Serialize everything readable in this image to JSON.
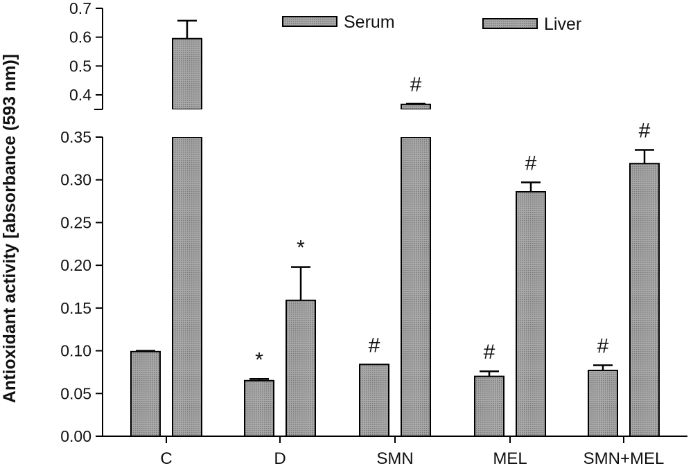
{
  "chart_data": {
    "type": "bar",
    "title": "",
    "xlabel": "",
    "ylabel": "Antioxidant activity [absorbance (593 nm)]",
    "categories": [
      "C",
      "D",
      "SMN",
      "MEL",
      "SMN+MEL"
    ],
    "series": [
      {
        "name": "Serum",
        "values": [
          0.099,
          0.065,
          0.084,
          0.07,
          0.077
        ],
        "errors": [
          0.001,
          0.002,
          0.0,
          0.006,
          0.006
        ],
        "annotations": [
          "",
          "*",
          "#",
          "#",
          "#"
        ]
      },
      {
        "name": "Liver",
        "values": [
          0.595,
          0.159,
          0.367,
          0.286,
          0.319
        ],
        "errors": [
          0.062,
          0.039,
          0.002,
          0.011,
          0.016
        ],
        "annotations": [
          "",
          "*",
          "#",
          "#",
          "#"
        ]
      }
    ],
    "y_axis_break": {
      "lower_range": [
        0,
        0.35
      ],
      "lower_ticks": [
        "0.00",
        "0.05",
        "0.10",
        "0.15",
        "0.20",
        "0.25",
        "0.30",
        "0.35"
      ],
      "upper_range": [
        0.35,
        0.7
      ],
      "upper_ticks": [
        "0.4",
        "0.5",
        "0.6",
        "0.7"
      ]
    },
    "legend_position": "top",
    "grid": false,
    "colors": {
      "bar_fill": "#9a9a9a",
      "stroke": "#000000"
    }
  }
}
